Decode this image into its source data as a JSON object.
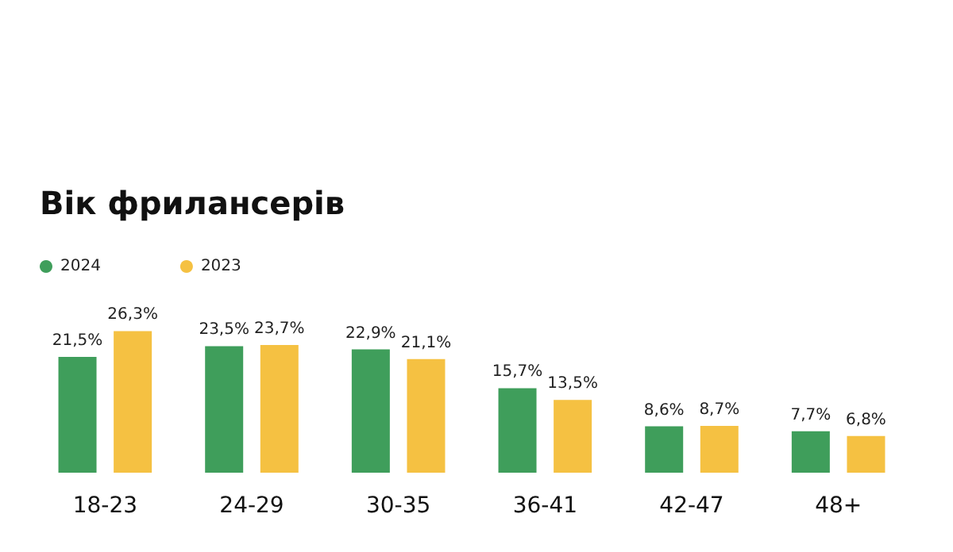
{
  "chart_data": {
    "type": "bar",
    "title": "Вік фрилансерів",
    "categories": [
      "18-23",
      "24-29",
      "30-35",
      "36-41",
      "42-47",
      "48+"
    ],
    "series": [
      {
        "name": "2024",
        "color": "#3f9e5b",
        "values": [
          21.5,
          23.5,
          22.9,
          15.7,
          8.6,
          7.7
        ],
        "value_labels": [
          "21,5%",
          "23,5%",
          "22,9%",
          "15,7%",
          "8,6%",
          "7,7%"
        ]
      },
      {
        "name": "2023",
        "color": "#f5c142",
        "values": [
          26.3,
          23.7,
          21.1,
          13.5,
          8.7,
          6.8
        ],
        "value_labels": [
          "26,3%",
          "23,7%",
          "21,1%",
          "13,5%",
          "8,7%",
          "6,8%"
        ]
      }
    ],
    "legend": "top left",
    "grid": false
  }
}
